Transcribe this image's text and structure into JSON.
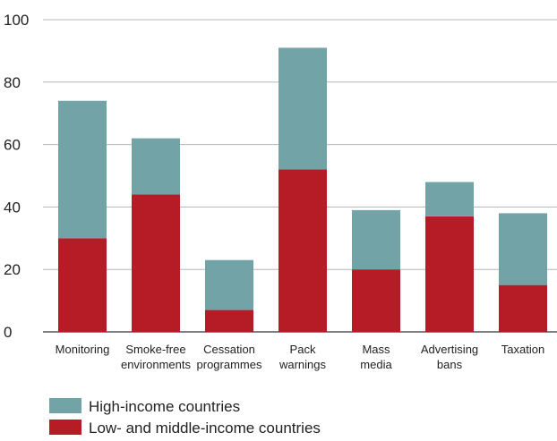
{
  "chart_data": {
    "type": "bar",
    "stacked": true,
    "categories": [
      [
        "Monitoring"
      ],
      [
        "Smoke-free",
        "environments"
      ],
      [
        "Cessation",
        "programmes"
      ],
      [
        "Pack",
        "warnings"
      ],
      [
        "Mass",
        "media"
      ],
      [
        "Advertising",
        "bans"
      ],
      [
        "Taxation"
      ]
    ],
    "series": [
      {
        "name": "Low- and middle-income countries",
        "color": "#b61c26",
        "values": [
          30,
          44,
          7,
          52,
          20,
          37,
          15
        ]
      },
      {
        "name": "High-income countries",
        "color": "#72a3a6",
        "values": [
          44,
          18,
          16,
          39,
          19,
          11,
          23
        ]
      }
    ],
    "totals": [
      74,
      62,
      23,
      91,
      39,
      48,
      38
    ],
    "ylim": [
      0,
      100
    ],
    "yticks": [
      0,
      20,
      40,
      60,
      80,
      100
    ],
    "grid": true,
    "legend_position": "bottom-left",
    "legend_order": [
      "High-income countries",
      "Low- and middle-income countries"
    ]
  }
}
